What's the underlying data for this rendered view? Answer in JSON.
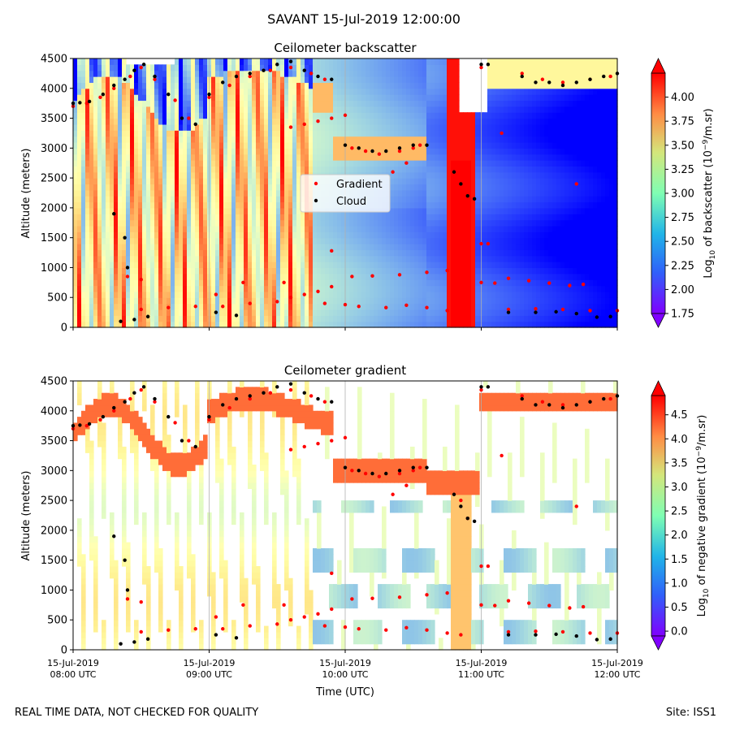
{
  "suptitle": "SAVANT 15-Jul-2019 12:00:00",
  "footer_left": "REAL TIME DATA, NOT CHECKED FOR QUALITY",
  "footer_right": "Site: ISS1",
  "colors": {
    "gradient_marker": "#ff0000",
    "cloud_marker": "#000000",
    "colormap": "rainbow"
  },
  "chart_data": [
    {
      "type": "heatmap",
      "title": "Ceilometer backscatter",
      "ylabel": "Altitude (meters)",
      "ylim": [
        0,
        4500
      ],
      "yticks": [
        "0",
        "500",
        "1000",
        "1500",
        "2000",
        "2500",
        "3000",
        "3500",
        "4000",
        "4500"
      ],
      "xlim_hours": [
        8,
        12
      ],
      "colorbar": {
        "label_prefix": "Log",
        "label_sub": "10",
        "label_suffix": " of backscatter (10",
        "label_sup": "−9",
        "label_end": "/m.sr)",
        "range": [
          1.75,
          4.25
        ],
        "ticks": [
          "1.75",
          "2.00",
          "2.25",
          "2.50",
          "2.75",
          "3.00",
          "3.25",
          "3.50",
          "3.75",
          "4.00"
        ]
      },
      "legend": {
        "placement": "center",
        "entries": [
          {
            "name": "Gradient",
            "color": "#ff0000"
          },
          {
            "name": "Cloud",
            "color": "#000000"
          }
        ]
      }
    },
    {
      "type": "heatmap",
      "title": "Ceilometer gradient",
      "ylabel": "Altitude (meters)",
      "xlabel": "Time (UTC)",
      "ylim": [
        0,
        4500
      ],
      "yticks": [
        "0",
        "500",
        "1000",
        "1500",
        "2000",
        "2500",
        "3000",
        "3500",
        "4000",
        "4500"
      ],
      "xlim_hours": [
        8,
        12
      ],
      "xticks": [
        {
          "hour": 8,
          "date": "15-Jul-2019",
          "time": "08:00 UTC"
        },
        {
          "hour": 9,
          "date": "15-Jul-2019",
          "time": "09:00 UTC"
        },
        {
          "hour": 10,
          "date": "15-Jul-2019",
          "time": "10:00 UTC"
        },
        {
          "hour": 11,
          "date": "15-Jul-2019",
          "time": "11:00 UTC"
        },
        {
          "hour": 12,
          "date": "15-Jul-2019",
          "time": "12:00 UTC"
        }
      ],
      "colorbar": {
        "label_prefix": "Log",
        "label_sub": "10",
        "label_suffix": " of negative gradient (10",
        "label_sup": "−9",
        "label_end": "/m.sr)",
        "range": [
          -0.1,
          4.9
        ],
        "ticks": [
          "0.0",
          "0.5",
          "1.0",
          "1.5",
          "2.0",
          "2.5",
          "3.0",
          "3.5",
          "4.0",
          "4.5"
        ]
      }
    }
  ],
  "layers": {
    "cloud_points": [
      [
        8.0,
        3750
      ],
      [
        8.05,
        3760
      ],
      [
        8.12,
        3780
      ],
      [
        8.22,
        3900
      ],
      [
        8.3,
        4050
      ],
      [
        8.38,
        4150
      ],
      [
        8.45,
        4300
      ],
      [
        8.52,
        4400
      ],
      [
        8.6,
        4200
      ],
      [
        8.7,
        3900
      ],
      [
        8.8,
        3500
      ],
      [
        8.9,
        3400
      ],
      [
        9.0,
        3900
      ],
      [
        9.1,
        4100
      ],
      [
        9.2,
        4200
      ],
      [
        9.3,
        4250
      ],
      [
        9.4,
        4300
      ],
      [
        9.5,
        4400
      ],
      [
        9.6,
        4450
      ],
      [
        9.7,
        4300
      ],
      [
        9.8,
        4200
      ],
      [
        9.9,
        4150
      ],
      [
        10.0,
        3050
      ],
      [
        10.1,
        3000
      ],
      [
        10.2,
        2950
      ],
      [
        10.3,
        2950
      ],
      [
        10.4,
        3000
      ],
      [
        10.5,
        3050
      ],
      [
        10.6,
        3050
      ],
      [
        10.8,
        2600
      ],
      [
        10.85,
        2400
      ],
      [
        10.9,
        2200
      ],
      [
        10.95,
        2150
      ],
      [
        11.0,
        4400
      ],
      [
        11.05,
        4400
      ],
      [
        11.3,
        4200
      ],
      [
        11.4,
        4100
      ],
      [
        11.5,
        4100
      ],
      [
        11.6,
        4050
      ],
      [
        11.7,
        4100
      ],
      [
        11.8,
        4150
      ],
      [
        11.9,
        4200
      ],
      [
        12.0,
        4250
      ],
      [
        8.35,
        100
      ],
      [
        8.45,
        130
      ],
      [
        8.55,
        180
      ],
      [
        9.05,
        250
      ],
      [
        9.2,
        200
      ],
      [
        11.2,
        250
      ],
      [
        11.4,
        250
      ],
      [
        11.55,
        260
      ],
      [
        11.7,
        230
      ],
      [
        11.85,
        170
      ],
      [
        11.95,
        180
      ],
      [
        8.4,
        1000
      ],
      [
        8.38,
        1500
      ],
      [
        8.3,
        1900
      ]
    ],
    "gradient_points": [
      [
        8.0,
        3700
      ],
      [
        8.1,
        3750
      ],
      [
        8.2,
        3850
      ],
      [
        8.3,
        4000
      ],
      [
        8.42,
        4200
      ],
      [
        8.5,
        4350
      ],
      [
        8.6,
        4150
      ],
      [
        8.75,
        3800
      ],
      [
        8.85,
        3500
      ],
      [
        9.0,
        3850
      ],
      [
        9.15,
        4050
      ],
      [
        9.3,
        4200
      ],
      [
        9.45,
        4300
      ],
      [
        9.6,
        4350
      ],
      [
        9.75,
        4250
      ],
      [
        9.85,
        4150
      ],
      [
        9.6,
        3350
      ],
      [
        9.7,
        3400
      ],
      [
        9.8,
        3450
      ],
      [
        9.9,
        3500
      ],
      [
        10.0,
        3550
      ],
      [
        10.05,
        3000
      ],
      [
        10.15,
        2950
      ],
      [
        10.25,
        2900
      ],
      [
        10.4,
        2950
      ],
      [
        10.5,
        3000
      ],
      [
        10.55,
        3050
      ],
      [
        10.85,
        2500
      ],
      [
        10.9,
        2200
      ],
      [
        11.15,
        3250
      ],
      [
        11.0,
        4350
      ],
      [
        11.3,
        4250
      ],
      [
        11.45,
        4150
      ],
      [
        11.6,
        4100
      ],
      [
        11.8,
        4150
      ],
      [
        11.95,
        4200
      ],
      [
        8.5,
        300
      ],
      [
        8.7,
        330
      ],
      [
        8.9,
        350
      ],
      [
        9.1,
        350
      ],
      [
        9.3,
        400
      ],
      [
        9.5,
        430
      ],
      [
        9.6,
        500
      ],
      [
        9.7,
        550
      ],
      [
        9.8,
        600
      ],
      [
        9.9,
        680
      ],
      [
        9.85,
        400
      ],
      [
        10.0,
        380
      ],
      [
        10.1,
        350
      ],
      [
        10.3,
        330
      ],
      [
        10.45,
        370
      ],
      [
        10.6,
        330
      ],
      [
        10.75,
        280
      ],
      [
        10.85,
        250
      ],
      [
        10.05,
        850
      ],
      [
        10.2,
        860
      ],
      [
        10.4,
        880
      ],
      [
        10.6,
        920
      ],
      [
        10.75,
        950
      ],
      [
        11.0,
        750
      ],
      [
        11.1,
        740
      ],
      [
        11.2,
        820
      ],
      [
        11.35,
        780
      ],
      [
        11.5,
        740
      ],
      [
        11.65,
        700
      ],
      [
        11.75,
        720
      ],
      [
        11.2,
        300
      ],
      [
        11.4,
        310
      ],
      [
        11.6,
        300
      ],
      [
        11.8,
        280
      ],
      [
        12.0,
        280
      ],
      [
        11.0,
        1400
      ],
      [
        11.05,
        1400
      ],
      [
        9.9,
        1280
      ],
      [
        10.35,
        2600
      ],
      [
        10.45,
        2750
      ],
      [
        11.7,
        2400
      ],
      [
        8.4,
        850
      ],
      [
        8.5,
        800
      ],
      [
        9.05,
        550
      ],
      [
        9.25,
        750
      ],
      [
        9.55,
        750
      ]
    ]
  }
}
